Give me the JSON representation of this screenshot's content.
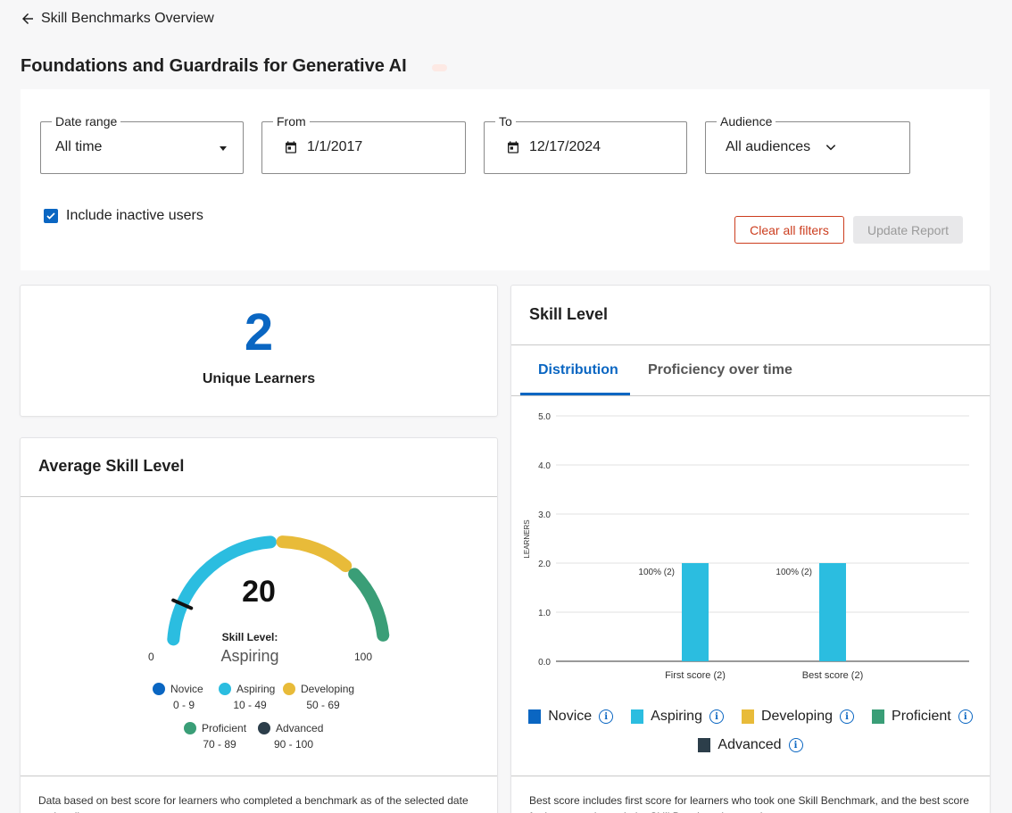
{
  "nav": {
    "back_label": "Skill Benchmarks Overview"
  },
  "page": {
    "title": "Foundations and Guardrails for Generative AI"
  },
  "filters": {
    "date_range": {
      "label": "Date range",
      "value": "All time"
    },
    "from": {
      "label": "From",
      "value": "1/1/2017"
    },
    "to": {
      "label": "To",
      "value": "12/17/2024"
    },
    "audience": {
      "label": "Audience",
      "value": "All audiences"
    },
    "include_inactive": {
      "label": "Include inactive users",
      "checked": true
    },
    "clear_label": "Clear all filters",
    "update_label": "Update Report"
  },
  "learners": {
    "count": "2",
    "label": "Unique Learners"
  },
  "average": {
    "title": "Average Skill Level",
    "value": "20",
    "value_number": 20,
    "sub_label": "Skill Level:",
    "level": "Aspiring",
    "min": "0",
    "max": "100",
    "legend": [
      {
        "name": "Novice",
        "range": "0 - 9",
        "color": "#0a66c2"
      },
      {
        "name": "Aspiring",
        "range": "10 - 49",
        "color": "#2bbde0"
      },
      {
        "name": "Developing",
        "range": "50 - 69",
        "color": "#e8bb39"
      },
      {
        "name": "Proficient",
        "range": "70 - 89",
        "color": "#3a9e77"
      },
      {
        "name": "Advanced",
        "range": "90 - 100",
        "color": "#2c3e4a"
      }
    ],
    "footnote": "Data based on best score for learners who completed a benchmark as of the selected date and audience."
  },
  "skill_level": {
    "title": "Skill Level",
    "tabs": [
      "Distribution",
      "Proficiency over time"
    ],
    "active_tab": "Distribution",
    "legend": [
      {
        "name": "Novice",
        "color": "#0a66c2"
      },
      {
        "name": "Aspiring",
        "color": "#2bbde0"
      },
      {
        "name": "Developing",
        "color": "#e8bb39"
      },
      {
        "name": "Proficient",
        "color": "#3a9e77"
      },
      {
        "name": "Advanced",
        "color": "#2c3e4a"
      }
    ],
    "info_glyph": "i",
    "footnote": "Best score includes first score for learners who took one Skill Benchmark, and the best score for learners who took the Skill Benchmark more than once."
  },
  "chart_data": {
    "type": "bar",
    "categories": [
      "First score (2)",
      "Best score (2)"
    ],
    "series": [
      {
        "name": "Aspiring",
        "values": [
          2,
          2
        ],
        "color": "#2bbde0",
        "labels": [
          "100% (2)",
          "100% (2)"
        ]
      }
    ],
    "ylabel": "LEARNERS",
    "ylim": [
      0,
      5
    ],
    "yticks": [
      "0.0",
      "1.0",
      "2.0",
      "3.0",
      "4.0",
      "5.0"
    ],
    "grid": true
  },
  "icons": {
    "back": "arrow-left-icon",
    "calendar": "calendar-icon",
    "chevron": "chevron-down-icon",
    "check": "checkmark-icon",
    "info": "info-icon"
  },
  "colors": {
    "accent": "#0a66c2",
    "danger": "#cc3d1e"
  }
}
